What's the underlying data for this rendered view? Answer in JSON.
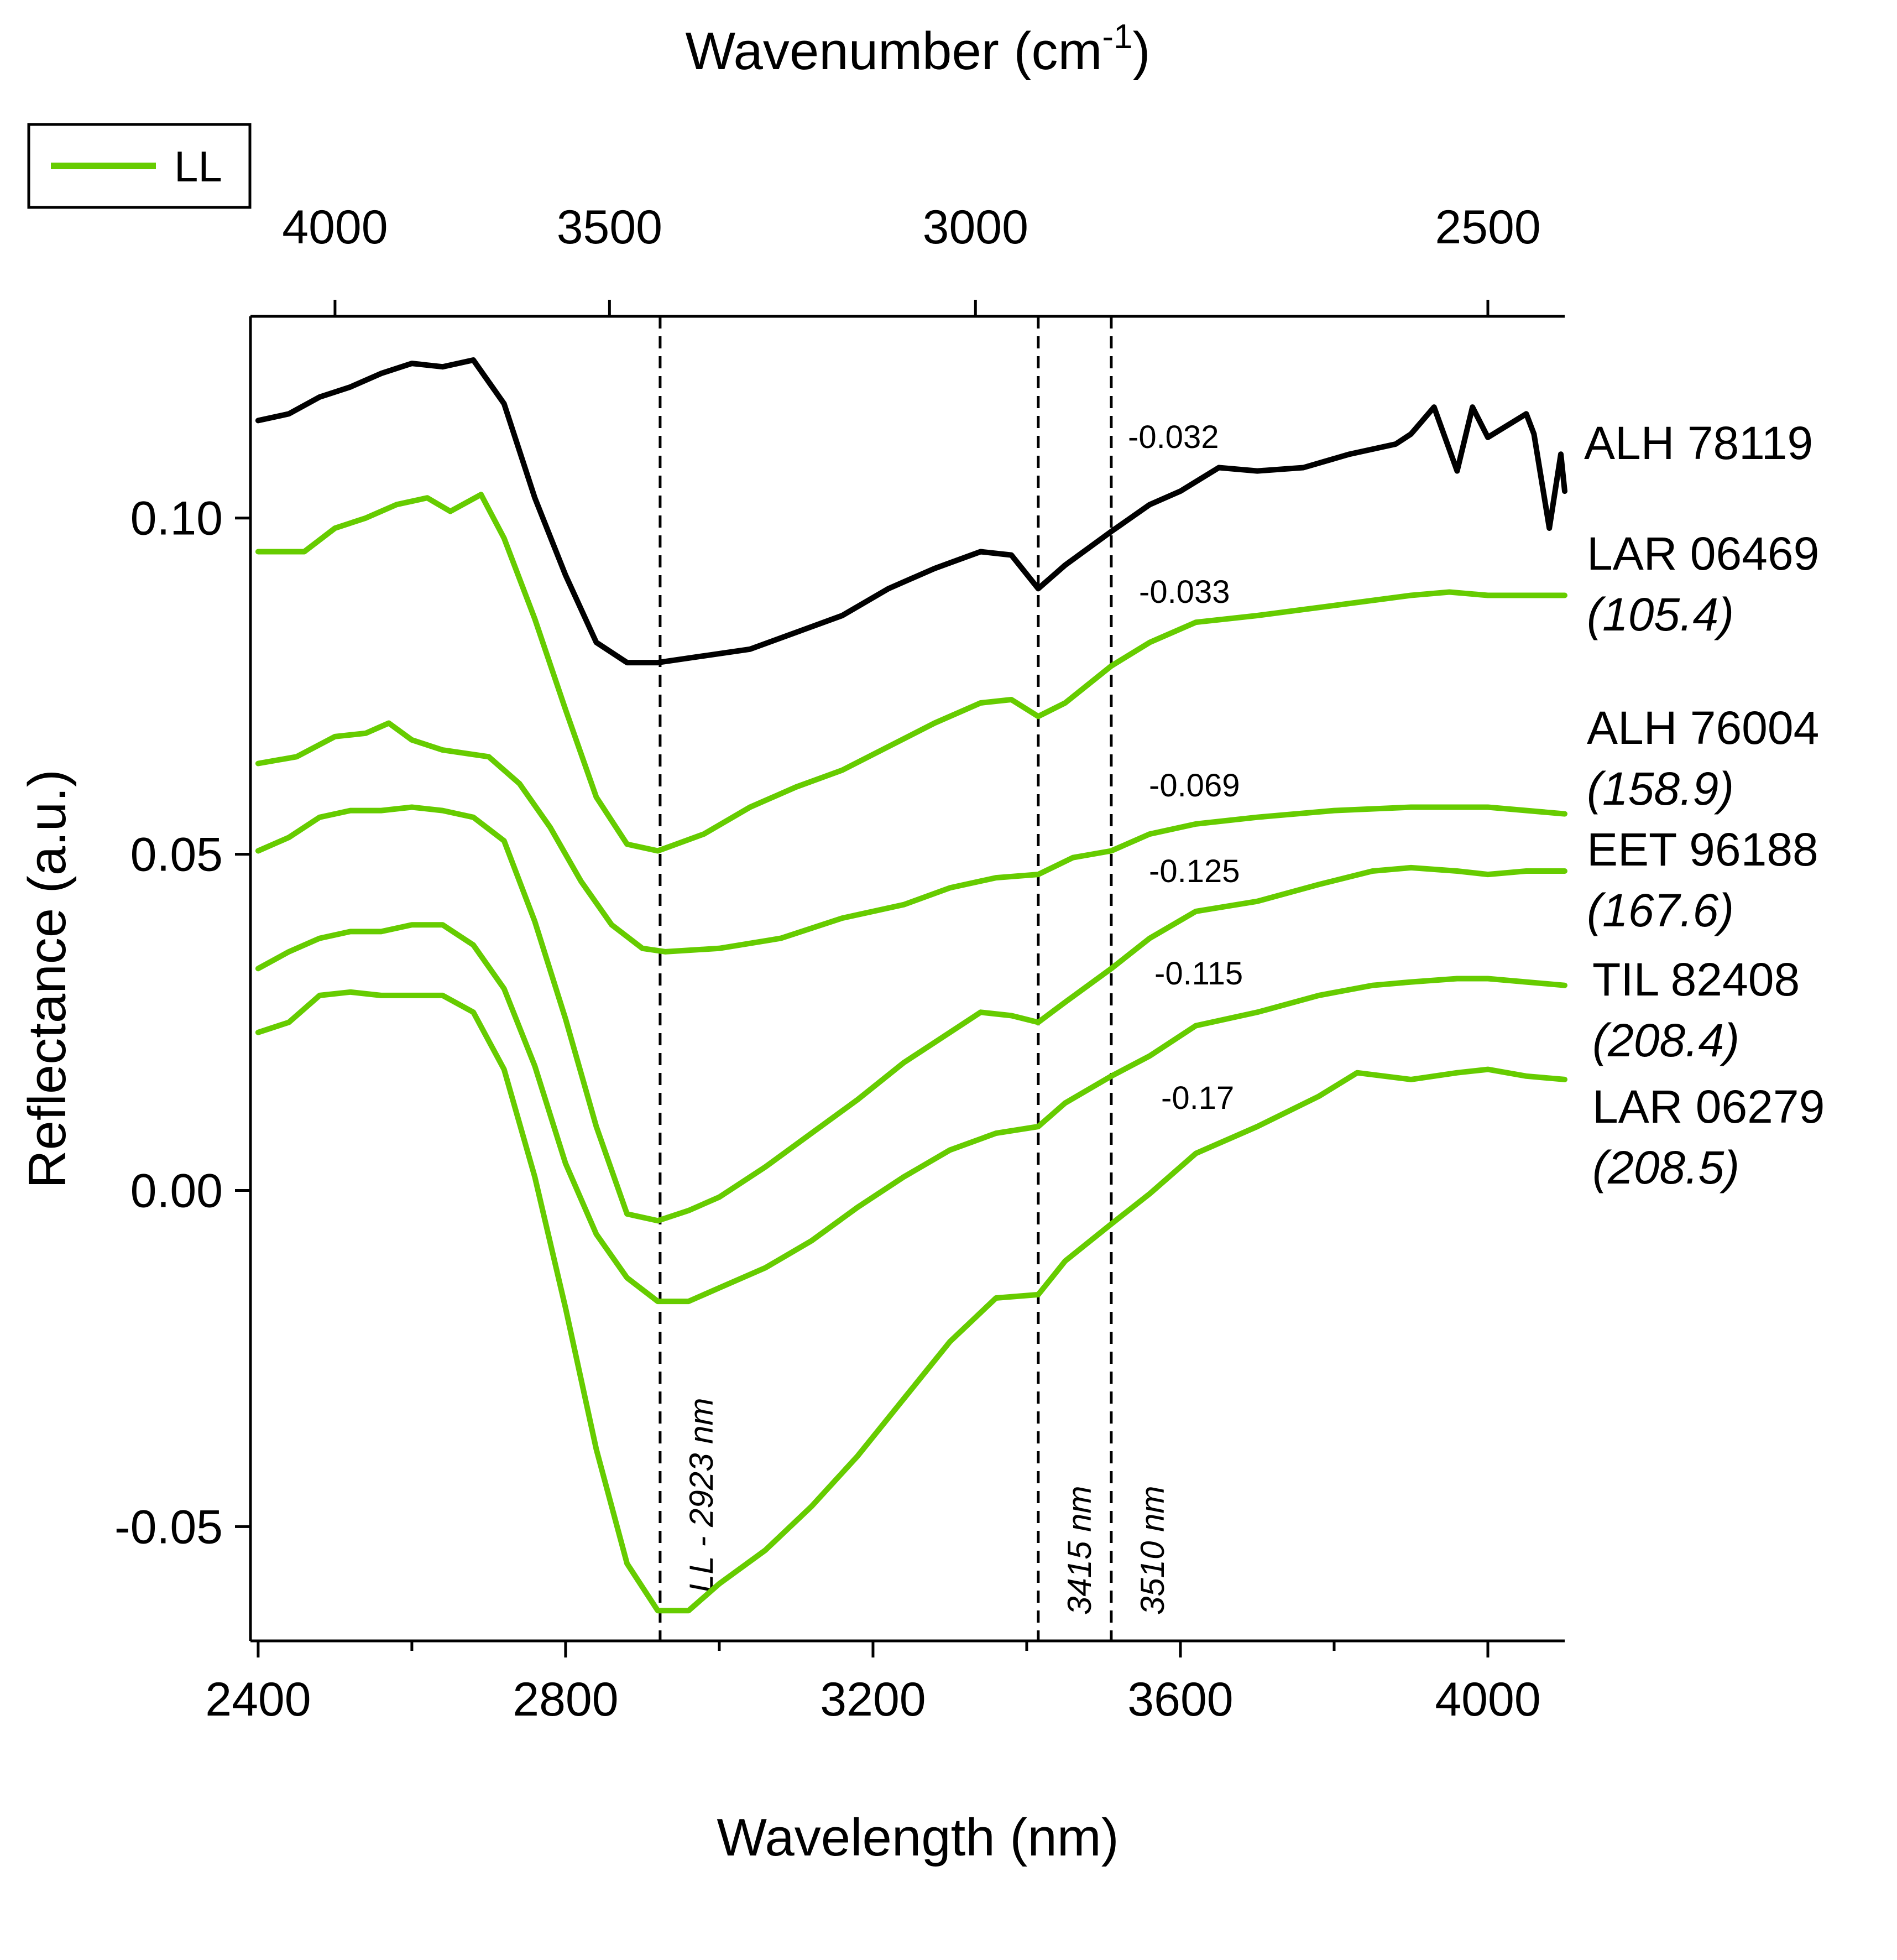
{
  "chart_data": {
    "type": "line",
    "xlabel": "Wavelength (nm)",
    "x2label_main": "Wavenumber (cm",
    "x2label_sup": "-1",
    "x2label_end": ")",
    "ylabel": "Reflectance (a.u.)",
    "xlim": [
      2390,
      4100
    ],
    "ylim": [
      -0.067,
      0.13
    ],
    "x_ticks": [
      2400,
      2800,
      3200,
      3600,
      4000
    ],
    "x_tick_labels": [
      "2400",
      "2800",
      "3200",
      "3600",
      "4000"
    ],
    "x_minor_ticks": [
      2600,
      3000,
      3400,
      3800
    ],
    "y_ticks": [
      -0.05,
      0.0,
      0.05,
      0.1
    ],
    "y_tick_labels": [
      "-0.05",
      "0.00",
      "0.05",
      "0.10"
    ],
    "wavenumber_ticks": [
      4000,
      3500,
      3000,
      2500
    ],
    "wavenumber_tick_labels": [
      "4000",
      "3500",
      "3000",
      "2500"
    ],
    "legend": {
      "label": "LL",
      "color": "#66cc00",
      "placement": "top-left"
    },
    "vertical_lines": [
      {
        "x": 2923,
        "label": "LL - 2923 nm"
      },
      {
        "x": 3415,
        "label": "3415 nm"
      },
      {
        "x": 3510,
        "label": "3510 nm"
      }
    ],
    "series": [
      {
        "name": "ALH 78119",
        "subtitle": "",
        "band_value": "-0.032",
        "color": "#000000",
        "points": [
          [
            2400,
            0.1145
          ],
          [
            2440,
            0.1155
          ],
          [
            2480,
            0.118
          ],
          [
            2520,
            0.1195
          ],
          [
            2560,
            0.1215
          ],
          [
            2600,
            0.123
          ],
          [
            2640,
            0.1225
          ],
          [
            2680,
            0.1235
          ],
          [
            2720,
            0.117
          ],
          [
            2760,
            0.103
          ],
          [
            2800,
            0.0915
          ],
          [
            2840,
            0.0815
          ],
          [
            2880,
            0.0785
          ],
          [
            2920,
            0.0785
          ],
          [
            2980,
            0.0795
          ],
          [
            3040,
            0.0805
          ],
          [
            3100,
            0.083
          ],
          [
            3160,
            0.0855
          ],
          [
            3220,
            0.0895
          ],
          [
            3280,
            0.0925
          ],
          [
            3340,
            0.095
          ],
          [
            3380,
            0.0945
          ],
          [
            3415,
            0.0895
          ],
          [
            3450,
            0.093
          ],
          [
            3510,
            0.098
          ],
          [
            3560,
            0.102
          ],
          [
            3600,
            0.104
          ],
          [
            3650,
            0.1075
          ],
          [
            3700,
            0.107
          ],
          [
            3760,
            0.1075
          ],
          [
            3820,
            0.1095
          ],
          [
            3880,
            0.111
          ],
          [
            3900,
            0.1125
          ],
          [
            3930,
            0.1165
          ],
          [
            3960,
            0.107
          ],
          [
            3980,
            0.1165
          ],
          [
            4000,
            0.112
          ],
          [
            4050,
            0.1155
          ],
          [
            4060,
            0.1125
          ],
          [
            4080,
            0.0985
          ],
          [
            4095,
            0.1095
          ],
          [
            4100,
            0.104
          ]
        ]
      },
      {
        "name": "LAR 06469",
        "subtitle": "(105.4)",
        "band_value": "-0.033",
        "color": "#66cc00",
        "points": [
          [
            2400,
            0.095
          ],
          [
            2460,
            0.095
          ],
          [
            2500,
            0.0985
          ],
          [
            2540,
            0.1
          ],
          [
            2580,
            0.102
          ],
          [
            2620,
            0.103
          ],
          [
            2650,
            0.101
          ],
          [
            2690,
            0.1035
          ],
          [
            2720,
            0.097
          ],
          [
            2760,
            0.085
          ],
          [
            2800,
            0.0715
          ],
          [
            2840,
            0.0585
          ],
          [
            2880,
            0.0515
          ],
          [
            2920,
            0.0505
          ],
          [
            2980,
            0.053
          ],
          [
            3040,
            0.057
          ],
          [
            3100,
            0.06
          ],
          [
            3160,
            0.0625
          ],
          [
            3220,
            0.066
          ],
          [
            3280,
            0.0695
          ],
          [
            3340,
            0.0725
          ],
          [
            3380,
            0.073
          ],
          [
            3415,
            0.0705
          ],
          [
            3450,
            0.0725
          ],
          [
            3510,
            0.078
          ],
          [
            3560,
            0.0815
          ],
          [
            3620,
            0.0845
          ],
          [
            3700,
            0.0855
          ],
          [
            3800,
            0.087
          ],
          [
            3900,
            0.0885
          ],
          [
            3950,
            0.089
          ],
          [
            4000,
            0.0885
          ],
          [
            4050,
            0.0885
          ],
          [
            4100,
            0.0885
          ]
        ]
      },
      {
        "name": "ALH 76004",
        "subtitle": "(158.9)",
        "band_value": "-0.069",
        "color": "#66cc00",
        "points": [
          [
            2400,
            0.0635
          ],
          [
            2450,
            0.0645
          ],
          [
            2500,
            0.0675
          ],
          [
            2540,
            0.068
          ],
          [
            2570,
            0.0695
          ],
          [
            2600,
            0.067
          ],
          [
            2640,
            0.0655
          ],
          [
            2700,
            0.0645
          ],
          [
            2740,
            0.0605
          ],
          [
            2780,
            0.054
          ],
          [
            2820,
            0.046
          ],
          [
            2860,
            0.0395
          ],
          [
            2900,
            0.036
          ],
          [
            2930,
            0.0355
          ],
          [
            3000,
            0.036
          ],
          [
            3080,
            0.0375
          ],
          [
            3160,
            0.0405
          ],
          [
            3240,
            0.0425
          ],
          [
            3300,
            0.045
          ],
          [
            3360,
            0.0465
          ],
          [
            3415,
            0.047
          ],
          [
            3460,
            0.0495
          ],
          [
            3510,
            0.0505
          ],
          [
            3560,
            0.053
          ],
          [
            3620,
            0.0545
          ],
          [
            3700,
            0.0555
          ],
          [
            3800,
            0.0565
          ],
          [
            3900,
            0.057
          ],
          [
            4000,
            0.057
          ],
          [
            4100,
            0.056
          ]
        ]
      },
      {
        "name": "EET 96188",
        "subtitle": "(167.6)",
        "band_value": "-0.125",
        "color": "#66cc00",
        "points": [
          [
            2400,
            0.0505
          ],
          [
            2440,
            0.0525
          ],
          [
            2480,
            0.0555
          ],
          [
            2520,
            0.0565
          ],
          [
            2560,
            0.0565
          ],
          [
            2600,
            0.057
          ],
          [
            2640,
            0.0565
          ],
          [
            2680,
            0.0555
          ],
          [
            2720,
            0.052
          ],
          [
            2760,
            0.04
          ],
          [
            2800,
            0.0255
          ],
          [
            2840,
            0.0095
          ],
          [
            2880,
            -0.0035
          ],
          [
            2920,
            -0.0045
          ],
          [
            2960,
            -0.003
          ],
          [
            3000,
            -0.001
          ],
          [
            3060,
            0.0035
          ],
          [
            3120,
            0.0085
          ],
          [
            3180,
            0.0135
          ],
          [
            3240,
            0.019
          ],
          [
            3300,
            0.0235
          ],
          [
            3340,
            0.0265
          ],
          [
            3380,
            0.026
          ],
          [
            3415,
            0.025
          ],
          [
            3450,
            0.028
          ],
          [
            3510,
            0.033
          ],
          [
            3560,
            0.0375
          ],
          [
            3620,
            0.0415
          ],
          [
            3700,
            0.043
          ],
          [
            3780,
            0.0455
          ],
          [
            3850,
            0.0475
          ],
          [
            3900,
            0.048
          ],
          [
            3960,
            0.0475
          ],
          [
            4000,
            0.047
          ],
          [
            4050,
            0.0475
          ],
          [
            4100,
            0.0475
          ]
        ]
      },
      {
        "name": "TIL 82408",
        "subtitle": "(208.4)",
        "band_value": "-0.115",
        "color": "#66cc00",
        "points": [
          [
            2400,
            0.033
          ],
          [
            2440,
            0.0355
          ],
          [
            2480,
            0.0375
          ],
          [
            2520,
            0.0385
          ],
          [
            2560,
            0.0385
          ],
          [
            2600,
            0.0395
          ],
          [
            2640,
            0.0395
          ],
          [
            2680,
            0.0365
          ],
          [
            2720,
            0.03
          ],
          [
            2760,
            0.0185
          ],
          [
            2800,
            0.004
          ],
          [
            2840,
            -0.0065
          ],
          [
            2880,
            -0.013
          ],
          [
            2920,
            -0.0165
          ],
          [
            2960,
            -0.0165
          ],
          [
            3000,
            -0.0145
          ],
          [
            3060,
            -0.0115
          ],
          [
            3120,
            -0.0075
          ],
          [
            3180,
            -0.0025
          ],
          [
            3240,
            0.002
          ],
          [
            3300,
            0.006
          ],
          [
            3360,
            0.0085
          ],
          [
            3415,
            0.0095
          ],
          [
            3450,
            0.013
          ],
          [
            3510,
            0.017
          ],
          [
            3560,
            0.02
          ],
          [
            3620,
            0.0245
          ],
          [
            3700,
            0.0265
          ],
          [
            3780,
            0.029
          ],
          [
            3850,
            0.0305
          ],
          [
            3900,
            0.031
          ],
          [
            3960,
            0.0315
          ],
          [
            4000,
            0.0315
          ],
          [
            4050,
            0.031
          ],
          [
            4100,
            0.0305
          ]
        ]
      },
      {
        "name": "LAR 06279",
        "subtitle": "(208.5)",
        "band_value": "-0.17",
        "color": "#66cc00",
        "points": [
          [
            2400,
            0.0235
          ],
          [
            2440,
            0.025
          ],
          [
            2480,
            0.029
          ],
          [
            2520,
            0.0295
          ],
          [
            2560,
            0.029
          ],
          [
            2600,
            0.029
          ],
          [
            2640,
            0.029
          ],
          [
            2680,
            0.0265
          ],
          [
            2720,
            0.018
          ],
          [
            2760,
            0.002
          ],
          [
            2800,
            -0.0175
          ],
          [
            2840,
            -0.0385
          ],
          [
            2880,
            -0.0555
          ],
          [
            2920,
            -0.0625
          ],
          [
            2960,
            -0.0625
          ],
          [
            3000,
            -0.0585
          ],
          [
            3060,
            -0.0535
          ],
          [
            3120,
            -0.047
          ],
          [
            3180,
            -0.0395
          ],
          [
            3240,
            -0.031
          ],
          [
            3300,
            -0.0225
          ],
          [
            3360,
            -0.016
          ],
          [
            3415,
            -0.0155
          ],
          [
            3450,
            -0.0105
          ],
          [
            3510,
            -0.005
          ],
          [
            3560,
            -0.0005
          ],
          [
            3620,
            0.0055
          ],
          [
            3700,
            0.0095
          ],
          [
            3780,
            0.014
          ],
          [
            3830,
            0.0175
          ],
          [
            3900,
            0.0165
          ],
          [
            3960,
            0.0175
          ],
          [
            4000,
            0.018
          ],
          [
            4050,
            0.017
          ],
          [
            4100,
            0.0165
          ]
        ]
      }
    ]
  }
}
